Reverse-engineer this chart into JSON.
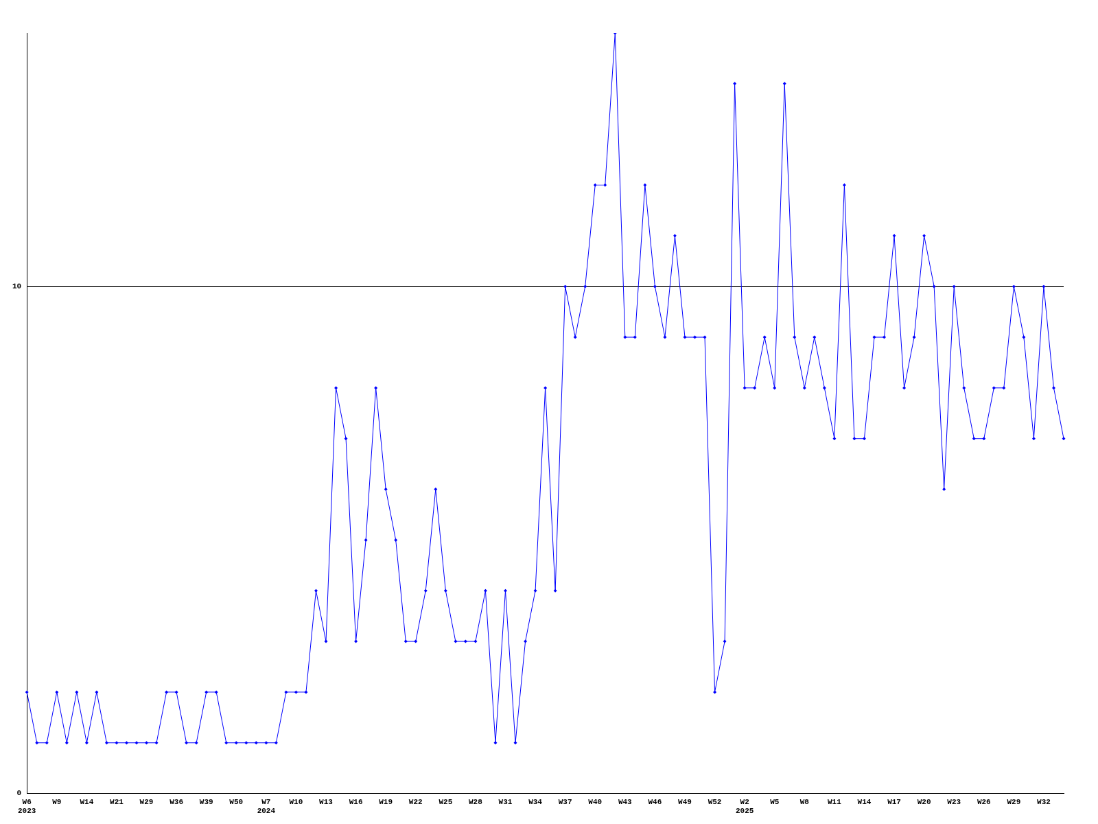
{
  "chart_data": {
    "type": "line",
    "categories": [
      "W6\n2023",
      null,
      null,
      "W9",
      null,
      null,
      "W14",
      null,
      null,
      "W21",
      null,
      null,
      "W29",
      null,
      null,
      "W36",
      null,
      null,
      "W39",
      null,
      null,
      "W50",
      null,
      null,
      "W7\n2024",
      null,
      null,
      "W10",
      null,
      null,
      "W13",
      null,
      null,
      "W16",
      null,
      null,
      "W19",
      null,
      null,
      "W22",
      null,
      null,
      "W25",
      null,
      null,
      "W28",
      null,
      null,
      "W31",
      null,
      null,
      "W34",
      null,
      null,
      "W37",
      null,
      null,
      "W40",
      null,
      null,
      "W43",
      null,
      null,
      "W46",
      null,
      null,
      "W49",
      null,
      null,
      "W52",
      null,
      null,
      "W2\n2025",
      null,
      null,
      "W5",
      null,
      null,
      "W8",
      null,
      null,
      "W11",
      null,
      null,
      "W14",
      null,
      null,
      "W17",
      null,
      null,
      "W20",
      null,
      null,
      "W23",
      null,
      null,
      "W26",
      null,
      null,
      "W29",
      null,
      null,
      "W32",
      null,
      null
    ],
    "series": [
      {
        "color": "#0000ff",
        "values": [
          2,
          1,
          1,
          2,
          1,
          2,
          1,
          2,
          1,
          1,
          1,
          1,
          1,
          1,
          2,
          2,
          1,
          1,
          2,
          2,
          1,
          1,
          1,
          1,
          1,
          1,
          2,
          2,
          2,
          4,
          3,
          8,
          7,
          3,
          5,
          8,
          6,
          5,
          3,
          3,
          4,
          6,
          4,
          3,
          3,
          3,
          4,
          1,
          4,
          1,
          3,
          4,
          8,
          4,
          10,
          9,
          10,
          12,
          12,
          15,
          9,
          9,
          12,
          10,
          9,
          11,
          9,
          9,
          9,
          2,
          3,
          14,
          8,
          8,
          9,
          8,
          14,
          9,
          8,
          9,
          8,
          7,
          12,
          7,
          7,
          9,
          9,
          11,
          8,
          9,
          11,
          10,
          6,
          10,
          8,
          7,
          7,
          8,
          8,
          10,
          9,
          7,
          10,
          8,
          7
        ]
      }
    ],
    "ylim": [
      0,
      15
    ],
    "yticks": [
      0,
      10
    ],
    "grid": "y",
    "legend": false,
    "marker": "diamond",
    "line_style": "solid"
  }
}
